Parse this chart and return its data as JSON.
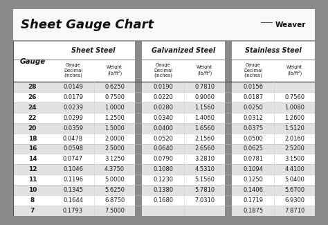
{
  "title": "Sheet Gauge Chart",
  "bg_outer": "#8a8a8a",
  "bg_white": "#ffffff",
  "bg_title": "#ffffff",
  "bg_header": "#ffffff",
  "bg_row_light": "#e2e2e2",
  "bg_row_white": "#ffffff",
  "col_sep_color": "#7a7a7a",
  "line_color": "#aaaaaa",
  "col_headers": [
    "Sheet Steel",
    "Galvanized Steel",
    "Stainless Steel"
  ],
  "gauges": [
    28,
    26,
    24,
    22,
    20,
    18,
    16,
    14,
    12,
    11,
    10,
    8,
    7
  ],
  "sheet_steel": [
    [
      "0.0149",
      "0.6250"
    ],
    [
      "0.0179",
      "0.7500"
    ],
    [
      "0.0239",
      "1.0000"
    ],
    [
      "0.0299",
      "1.2500"
    ],
    [
      "0.0359",
      "1.5000"
    ],
    [
      "0.0478",
      "2.0000"
    ],
    [
      "0.0598",
      "2.5000"
    ],
    [
      "0.0747",
      "3.1250"
    ],
    [
      "0.1046",
      "4.3750"
    ],
    [
      "0.1196",
      "5.0000"
    ],
    [
      "0.1345",
      "5.6250"
    ],
    [
      "0.1644",
      "6.8750"
    ],
    [
      "0.1793",
      "7.5000"
    ]
  ],
  "galvanized_steel": [
    [
      "0.0190",
      "0.7810"
    ],
    [
      "0.0220",
      "0.9060"
    ],
    [
      "0.0280",
      "1.1560"
    ],
    [
      "0.0340",
      "1.4060"
    ],
    [
      "0.0400",
      "1.6560"
    ],
    [
      "0.0520",
      "2.1560"
    ],
    [
      "0.0640",
      "2.6560"
    ],
    [
      "0.0790",
      "3.2810"
    ],
    [
      "0.1080",
      "4.5310"
    ],
    [
      "0.1230",
      "5.1560"
    ],
    [
      "0.1380",
      "5.7810"
    ],
    [
      "0.1680",
      "7.0310"
    ],
    [
      "",
      ""
    ]
  ],
  "stainless_steel": [
    [
      "0.0156",
      ""
    ],
    [
      "0.0187",
      "0.7560"
    ],
    [
      "0.0250",
      "1.0080"
    ],
    [
      "0.0312",
      "1.2600"
    ],
    [
      "0.0375",
      "1.5120"
    ],
    [
      "0.0500",
      "2.0160"
    ],
    [
      "0.0625",
      "2.5200"
    ],
    [
      "0.0781",
      "3.1500"
    ],
    [
      "0.1094",
      "4.4100"
    ],
    [
      "0.1250",
      "5.0400"
    ],
    [
      "0.1406",
      "5.6700"
    ],
    [
      "0.1719",
      "6.9300"
    ],
    [
      "0.1875",
      "7.8710"
    ]
  ],
  "text_color": "#1a1a1a",
  "font_size_title": 13,
  "font_size_section": 7,
  "font_size_sub": 4.8,
  "font_size_data": 6.0,
  "font_size_gauge": 6.5
}
